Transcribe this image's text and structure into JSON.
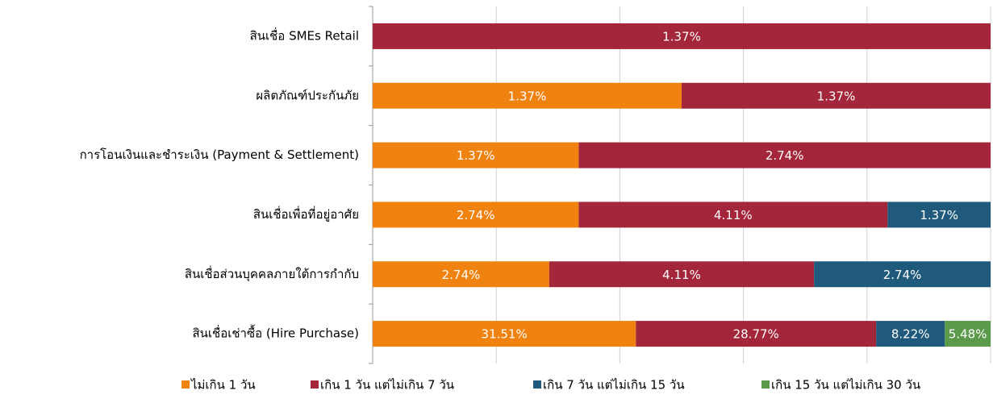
{
  "chart_data": {
    "type": "bar",
    "orientation": "horizontal",
    "stacked": "percent",
    "categories": [
      "สินเชื่อ SMEs Retail",
      "ผลิตภัณฑ์ประกันภัย",
      "การโอนเงินและชำระเงิน (Payment & Settlement)",
      "สินเชื่อเพื่อที่อยู่อาศัย",
      "สินเชื่อส่วนบุคคลภายใต้การกำกับ",
      "สินเชื่อเช่าซื้อ (Hire Purchase)"
    ],
    "series": [
      {
        "name": "ไม่เกิน 1 วัน",
        "color": "#f0820f",
        "values": [
          null,
          1.37,
          1.37,
          2.74,
          2.74,
          31.51
        ],
        "value_labels": [
          null,
          "1.37%",
          "1.37%",
          "2.74%",
          "2.74%",
          "31.51%"
        ]
      },
      {
        "name": "เกิน 1 วัน แต่ไม่เกิน 7 วัน",
        "color": "#a3263a",
        "values": [
          1.37,
          1.37,
          2.74,
          4.11,
          4.11,
          28.77
        ],
        "value_labels": [
          "1.37%",
          "1.37%",
          "2.74%",
          "4.11%",
          "4.11%",
          "28.77%"
        ]
      },
      {
        "name": "เกิน 7 วัน แต่ไม่เกิน 15 วัน",
        "color": "#1f5a7d",
        "values": [
          null,
          null,
          null,
          1.37,
          2.74,
          8.22
        ],
        "value_labels": [
          null,
          null,
          null,
          "1.37%",
          "2.74%",
          "8.22%"
        ]
      },
      {
        "name": "เกิน 15 วัน แต่ไม่เกิน 30 วัน",
        "color": "#5b9a4b",
        "values": [
          null,
          null,
          null,
          null,
          null,
          5.48
        ],
        "value_labels": [
          null,
          null,
          null,
          null,
          null,
          "5.48%"
        ]
      }
    ],
    "xlim": [
      0,
      100
    ],
    "xticks": [
      0,
      20,
      40,
      60,
      80,
      100
    ],
    "grid": true,
    "legend": "bottom"
  }
}
